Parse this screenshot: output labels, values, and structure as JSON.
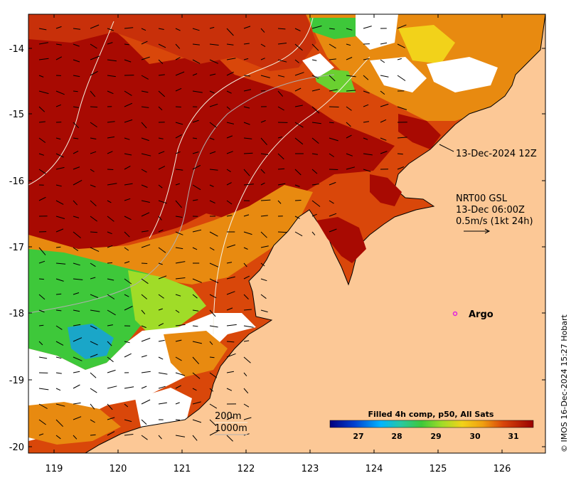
{
  "map": {
    "x_ticks": [
      "119",
      "120",
      "121",
      "122",
      "123",
      "124",
      "125",
      "126"
    ],
    "y_ticks": [
      "-14",
      "-15",
      "-16",
      "-17",
      "-18",
      "-19",
      "-20"
    ],
    "date_annotation": "13-Dec-2024 12Z",
    "current_label": {
      "line1": "NRT00 GSL",
      "line2": "13-Dec 06:00Z",
      "line3": "0.5m/s (1kt 24h)"
    },
    "argo_label": "Argo",
    "contours": {
      "c200": "200m",
      "c1000": "1000m"
    },
    "colorbar": {
      "title": "Filled 4h comp, p50, All Sats",
      "ticks": [
        "27",
        "28",
        "29",
        "30",
        "31"
      ]
    },
    "credit": "© IMOS 16-Dec-2024 15:27 Hobart",
    "colors": {
      "land": "#fcc896",
      "hot": "#a80a02",
      "warm": "#d9470a",
      "mid": "#e88a10",
      "yellow": "#f2d21a",
      "green": "#3ec83a",
      "cyan": "#1aa6c8",
      "argo": "#e020e0"
    }
  }
}
